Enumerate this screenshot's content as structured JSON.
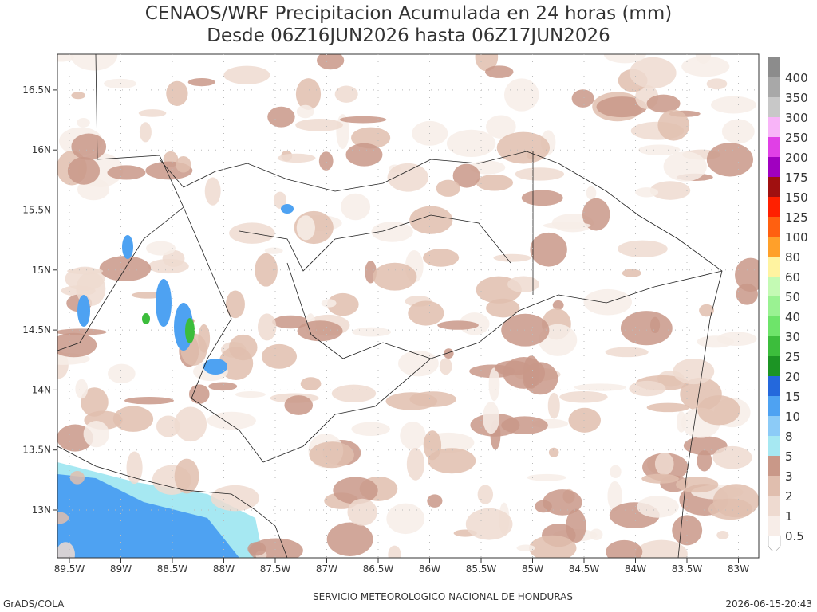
{
  "title": [
    "CENAOS/WRF Precipitacion Acumulada en 24 horas (mm)",
    "Desde 06Z16JUN2026 hasta 06Z17JUN2026"
  ],
  "map": {
    "lat_labels": [
      "13N",
      "13.5N",
      "14N",
      "14.5N",
      "15N",
      "15.5N",
      "16N",
      "16.5N"
    ],
    "lon_labels": [
      "89.5W",
      "89W",
      "88.5W",
      "88W",
      "87.5W",
      "87W",
      "86.5W",
      "86W",
      "85.5W",
      "85W",
      "84.5W",
      "84W",
      "83.5W",
      "83W"
    ]
  },
  "colorbar": [
    {
      "label": "0.5",
      "color": "#f7ede8"
    },
    {
      "label": "1",
      "color": "#eedad0"
    },
    {
      "label": "2",
      "color": "#e0beae"
    },
    {
      "label": "3",
      "color": "#c99888"
    },
    {
      "label": "5",
      "color": "#a6e8f2"
    },
    {
      "label": "8",
      "color": "#8ccbf7"
    },
    {
      "label": "10",
      "color": "#4ea2f2"
    },
    {
      "label": "15",
      "color": "#2468dc"
    },
    {
      "label": "20",
      "color": "#1c9424"
    },
    {
      "label": "25",
      "color": "#3cbd3c"
    },
    {
      "label": "30",
      "color": "#6ee46a"
    },
    {
      "label": "40",
      "color": "#9af292"
    },
    {
      "label": "50",
      "color": "#c4fab4"
    },
    {
      "label": "60",
      "color": "#fff3a0"
    },
    {
      "label": "80",
      "color": "#ffa02a"
    },
    {
      "label": "100",
      "color": "#ff6010"
    },
    {
      "label": "125",
      "color": "#ff2000"
    },
    {
      "label": "150",
      "color": "#a01010"
    },
    {
      "label": "175",
      "color": "#a000c0"
    },
    {
      "label": "200",
      "color": "#e040e6"
    },
    {
      "label": "250",
      "color": "#f8b4f8"
    },
    {
      "label": "300",
      "color": "#c8c8c8"
    },
    {
      "label": "350",
      "color": "#a8a8a8"
    },
    {
      "label": "400",
      "color": "#8c8c8c"
    }
  ],
  "footer": {
    "left": "GrADS/COLA",
    "center": "SERVICIO METEOROLOGICO NACIONAL DE HONDURAS",
    "right": "2026-06-15-20:43"
  }
}
